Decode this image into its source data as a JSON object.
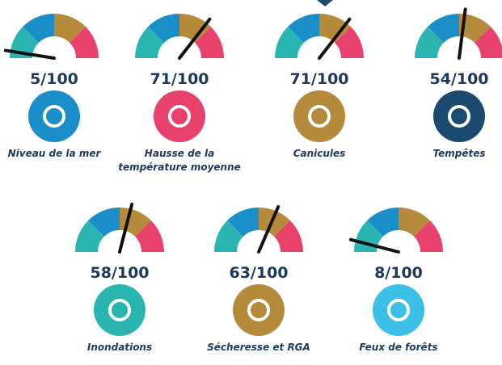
{
  "gauge_range": [
    0,
    100
  ],
  "items": [
    {
      "label": [
        "Niveau de la mer"
      ],
      "value": 5,
      "value_label": "5/100",
      "color": "#1a8ec8"
    },
    {
      "label": [
        "Hausse de la",
        "température moyenne"
      ],
      "value": 71,
      "value_label": "71/100",
      "color": "#e8416b"
    },
    {
      "label": [
        "Canicules"
      ],
      "value": 71,
      "value_label": "71/100",
      "color": "#b58a3a"
    },
    {
      "label": [
        "Tempêtes"
      ],
      "value": 54,
      "value_label": "54/100",
      "color": "#1b4a70"
    },
    {
      "label": [
        "Inondations"
      ],
      "value": 58,
      "value_label": "58/100",
      "color": "#2bb5b0"
    },
    {
      "label": [
        "Sécheresse et RGA"
      ],
      "value": 63,
      "value_label": "63/100",
      "color": "#b58a3a"
    },
    {
      "label": [
        "Feux de forêts"
      ],
      "value": 8,
      "value_label": "8/100",
      "color": "#3cc0e8"
    }
  ]
}
